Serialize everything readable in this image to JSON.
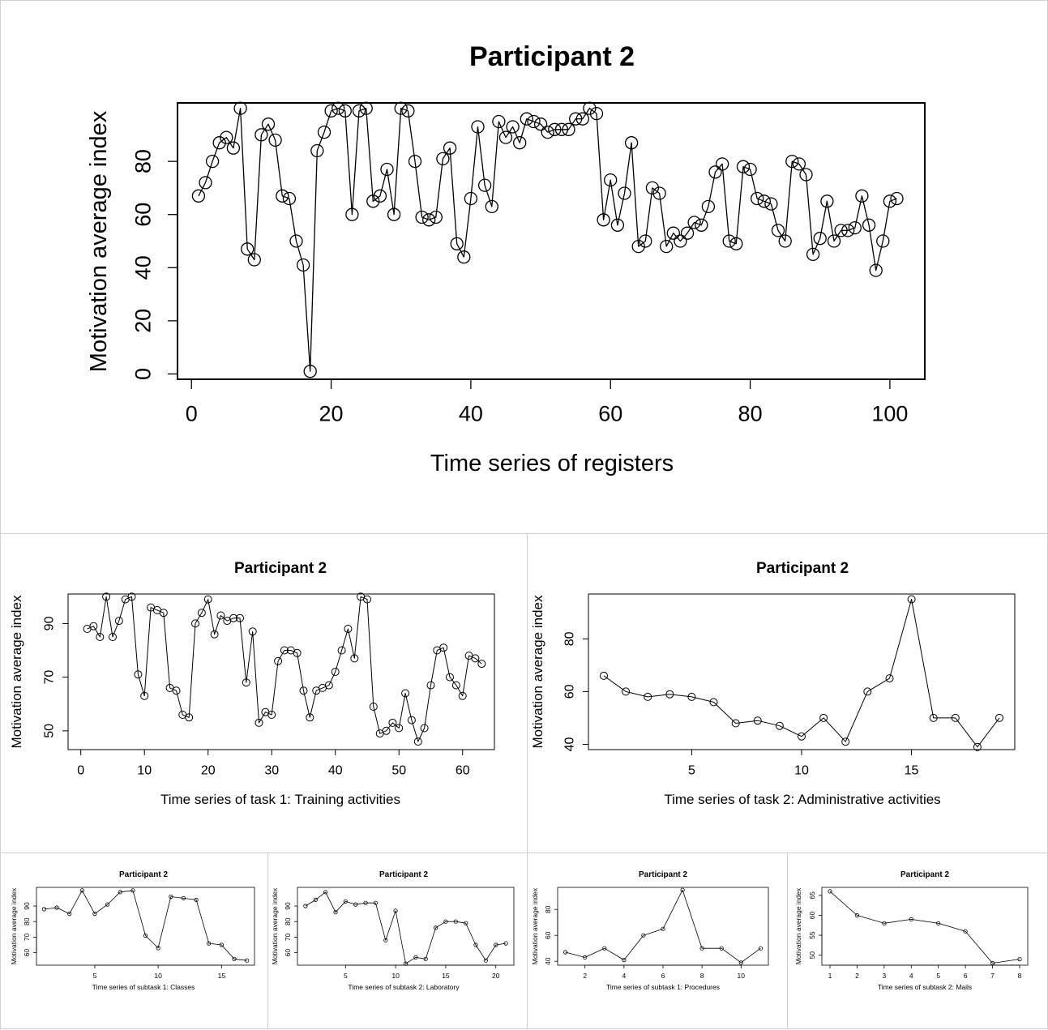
{
  "figure": {
    "chart_data": [
      {
        "id": "main",
        "type": "line",
        "markers": "open-circle",
        "title": "Participant 2",
        "xlabel": "Time series of registers",
        "ylabel": "Motivation average index",
        "xlim": [
          -2,
          105
        ],
        "ylim": [
          -2,
          102
        ],
        "xticks": [
          0,
          20,
          40,
          60,
          80,
          100
        ],
        "yticks": [
          0,
          20,
          40,
          60,
          80
        ],
        "x_start": 1,
        "values": [
          67,
          72,
          80,
          87,
          89,
          85,
          100,
          47,
          43,
          90,
          94,
          88,
          67,
          66,
          50,
          41,
          1,
          84,
          91,
          99,
          100,
          99,
          60,
          99,
          100,
          65,
          67,
          77,
          60,
          100,
          99,
          80,
          59,
          58,
          59,
          81,
          85,
          49,
          44,
          66,
          93,
          71,
          63,
          95,
          89,
          93,
          87,
          96,
          95,
          94,
          91,
          92,
          92,
          92,
          96,
          96,
          100,
          98,
          58,
          73,
          56,
          68,
          87,
          48,
          50,
          70,
          68,
          48,
          53,
          50,
          53,
          57,
          56,
          63,
          76,
          79,
          50,
          49,
          78,
          77,
          66,
          65,
          64,
          54,
          50,
          80,
          79,
          75,
          45,
          51,
          65,
          50,
          54,
          54,
          55,
          67,
          56,
          39,
          50,
          65,
          66
        ]
      },
      {
        "id": "task1",
        "type": "line",
        "markers": "open-circle",
        "title": "Participant 2",
        "xlabel": "Time series of task 1: Training activities",
        "ylabel": "Motivation average index",
        "xlim": [
          -2,
          65
        ],
        "ylim": [
          43,
          101
        ],
        "xticks": [
          0,
          10,
          20,
          30,
          40,
          50,
          60
        ],
        "yticks": [
          50,
          70,
          90
        ],
        "x_start": 1,
        "values": [
          88,
          89,
          85,
          100,
          85,
          91,
          99,
          100,
          71,
          63,
          96,
          95,
          94,
          66,
          65,
          56,
          55,
          90,
          94,
          99,
          86,
          93,
          91,
          92,
          92,
          68,
          87,
          53,
          57,
          56,
          76,
          80,
          80,
          79,
          65,
          55,
          65,
          66,
          67,
          72,
          80,
          88,
          77,
          100,
          99,
          59,
          49,
          50,
          53,
          51,
          64,
          54,
          46,
          51,
          67,
          80,
          81,
          70,
          67,
          63,
          78,
          77,
          75
        ]
      },
      {
        "id": "task2",
        "type": "line",
        "markers": "open-circle",
        "title": "Participant 2",
        "xlabel": "Time series of task 2: Administrative activities",
        "ylabel": "Motivation average index",
        "xlim": [
          0.3,
          19.7
        ],
        "ylim": [
          38,
          97
        ],
        "xticks": [
          5,
          10,
          15
        ],
        "yticks": [
          40,
          60,
          80
        ],
        "x_start": 1,
        "values": [
          66,
          60,
          58,
          59,
          58,
          56,
          48,
          49,
          47,
          43,
          50,
          41,
          60,
          65,
          95,
          50,
          50,
          39,
          50
        ]
      },
      {
        "id": "subtask1a",
        "type": "line",
        "markers": "open-circle",
        "title": "Participant 2",
        "xlabel": "Time series of subtask 1: Classes",
        "ylabel": "Motivation average index",
        "xlim": [
          0.4,
          17.6
        ],
        "ylim": [
          52,
          102
        ],
        "xticks": [
          5,
          10,
          15
        ],
        "yticks": [
          60,
          70,
          80,
          90
        ],
        "x_start": 1,
        "values": [
          88,
          89,
          85,
          100,
          85,
          91,
          99,
          100,
          71,
          63,
          96,
          95,
          94,
          66,
          65,
          56,
          55
        ]
      },
      {
        "id": "subtask2a",
        "type": "line",
        "markers": "open-circle",
        "title": "Participant 2",
        "xlabel": "Time series of subtask 2: Laboratory",
        "ylabel": "Motivation average index",
        "xlim": [
          0.2,
          21.8
        ],
        "ylim": [
          52,
          102
        ],
        "xticks": [
          5,
          10,
          15,
          20
        ],
        "yticks": [
          60,
          70,
          80,
          90
        ],
        "x_start": 1,
        "values": [
          90,
          94,
          99,
          86,
          93,
          91,
          92,
          92,
          68,
          87,
          53,
          57,
          56,
          76,
          80,
          80,
          79,
          65,
          55,
          65,
          66
        ]
      },
      {
        "id": "subtask1b",
        "type": "line",
        "markers": "open-circle",
        "title": "Participant 2",
        "xlabel": "Time series of subtask 1: Procedures",
        "ylabel": "Motivation average index",
        "xlim": [
          0.6,
          11.4
        ],
        "ylim": [
          37,
          97
        ],
        "xticks": [
          2,
          4,
          6,
          8,
          10
        ],
        "yticks": [
          40,
          60,
          80
        ],
        "x_start": 1,
        "values": [
          47,
          43,
          50,
          41,
          60,
          65,
          95,
          50,
          50,
          39,
          50
        ]
      },
      {
        "id": "subtask2b",
        "type": "line",
        "markers": "open-circle",
        "title": "Participant 2",
        "xlabel": "Time series of subtask 2: Mails",
        "ylabel": "Motivation average index",
        "xlim": [
          0.7,
          8.3
        ],
        "ylim": [
          47.5,
          67
        ],
        "xticks": [
          1,
          2,
          3,
          4,
          5,
          6,
          7,
          8
        ],
        "yticks": [
          50,
          55,
          60,
          65
        ],
        "x_start": 1,
        "values": [
          66,
          60,
          58,
          59,
          58,
          56,
          48,
          49
        ]
      }
    ]
  }
}
